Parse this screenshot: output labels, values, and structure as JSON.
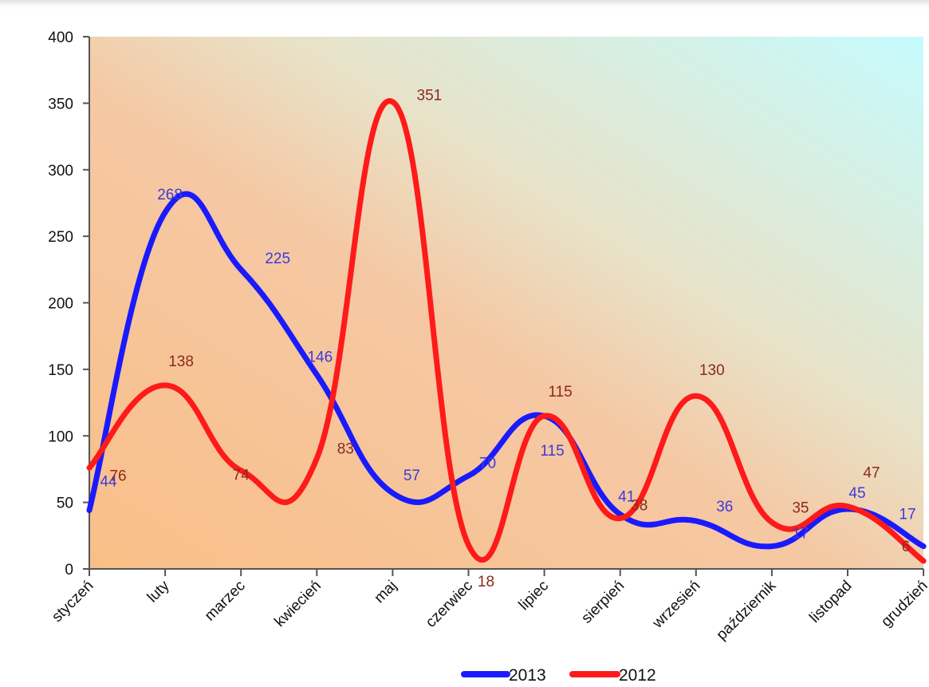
{
  "chart_data": {
    "type": "line",
    "categories": [
      "styczeń",
      "luty",
      "marzec",
      "kwiecień",
      "maj",
      "czerwiec",
      "lipiec",
      "sierpień",
      "wrzesień",
      "październik",
      "listopad",
      "grudzień"
    ],
    "series": [
      {
        "name": "2013",
        "color": "#1a1aff",
        "label_color": "#3b3bdc",
        "values": [
          44,
          268,
          225,
          146,
          57,
          70,
          115,
          41,
          36,
          17,
          45,
          17
        ]
      },
      {
        "name": "2012",
        "color": "#ff1a1a",
        "label_color": "#8b2a1e",
        "values": [
          76,
          138,
          74,
          83,
          351,
          18,
          115,
          38,
          130,
          35,
          47,
          6
        ]
      }
    ],
    "ylim": [
      0,
      400
    ],
    "yticks": [
      "0",
      "50",
      "100",
      "150",
      "200",
      "250",
      "300",
      "350",
      "400"
    ],
    "smooth": true,
    "legend_position": "bottom-center",
    "background": {
      "gradient_from": "#f9c08a",
      "gradient_to": "#c9fbfb"
    }
  }
}
